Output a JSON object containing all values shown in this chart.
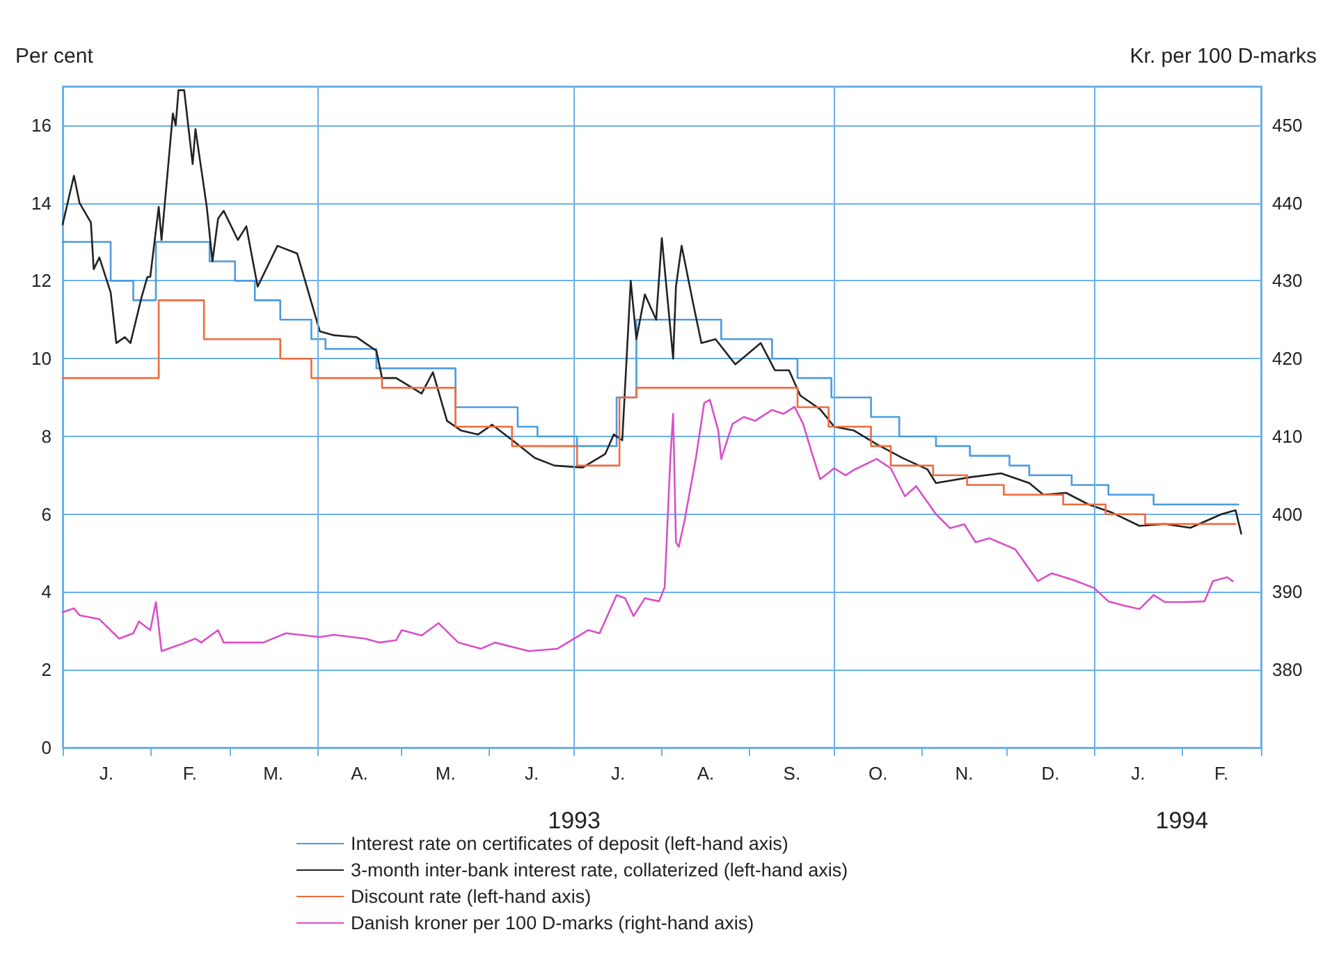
{
  "chart_data": {
    "type": "line",
    "ylabel": "Per cent",
    "y2label": "Kr. per 100 D-marks",
    "xlim": [
      "1993-01-01",
      "1994-03-01"
    ],
    "xticks": [
      {
        "value": "1993-01-01",
        "label": null
      },
      {
        "value": "1993-02-01",
        "label": null
      },
      {
        "value": "1993-03-01",
        "label": null
      },
      {
        "value": "1993-04-01",
        "label": null
      },
      {
        "value": "1993-05-01",
        "label": null
      },
      {
        "value": "1993-06-01",
        "label": null
      },
      {
        "value": "1993-07-01",
        "label": "1993"
      },
      {
        "value": "1993-08-01",
        "label": null
      },
      {
        "value": "1993-09-01",
        "label": null
      },
      {
        "value": "1993-10-01",
        "label": null
      },
      {
        "value": "1993-11-01",
        "label": null
      },
      {
        "value": "1993-12-01",
        "label": null
      },
      {
        "value": "1994-01-01",
        "label": null
      },
      {
        "value": "1994-02-01",
        "label": "1994"
      },
      {
        "value": "1994-03-01",
        "label": null
      }
    ],
    "annotations": [
      "J.",
      "F.",
      "M.",
      "A.",
      "M.",
      "J.",
      "J.",
      "A.",
      "S.",
      "O.",
      "N.",
      "D.",
      "J.",
      "F."
    ],
    "ylim": [
      0,
      17
    ],
    "yticks": [
      0,
      2,
      4,
      6,
      8,
      10,
      12,
      14,
      16
    ],
    "y2lim": [
      370,
      455
    ],
    "y2ticks": [
      380,
      390,
      400,
      410,
      420,
      430,
      440,
      450
    ],
    "grid": "y",
    "legend": "bottom",
    "ref_lines": [
      {
        "axis": "x",
        "value": "1993-04-01",
        "color": "#6ab0ea"
      },
      {
        "axis": "x",
        "value": "1993-07-01",
        "color": "#6ab0ea"
      },
      {
        "axis": "x",
        "value": "1993-10-01",
        "color": "#6ab0ea"
      },
      {
        "axis": "x",
        "value": "1994-01-01",
        "color": "#6ab0ea"
      }
    ],
    "series": [
      {
        "name": "Interest rate on certificates of deposit (left-hand axis)",
        "type": "step",
        "color": "#4a9be0",
        "x": [
          "1993-01-01",
          "1993-01-18",
          "1993-01-26",
          "1993-02-03",
          "1993-02-22",
          "1993-03-03",
          "1993-03-10",
          "1993-03-19",
          "1993-03-30",
          "1993-04-04",
          "1993-04-22",
          "1993-05-20",
          "1993-06-11",
          "1993-06-18",
          "1993-07-02",
          "1993-07-16",
          "1993-07-23",
          "1993-08-22",
          "1993-09-09",
          "1993-09-18",
          "1993-09-30",
          "1993-10-14",
          "1993-10-24",
          "1993-11-06",
          "1993-11-18",
          "1993-12-02",
          "1993-12-09",
          "1993-12-24",
          "1994-01-06",
          "1994-01-22",
          "1994-02-21"
        ],
        "values": [
          13,
          12,
          11.5,
          13,
          12.5,
          12,
          11.5,
          11,
          10.5,
          10.25,
          9.75,
          8.75,
          8.25,
          8,
          7.75,
          9,
          11,
          10.5,
          10,
          9.5,
          9,
          8.5,
          8,
          7.75,
          7.5,
          7.25,
          7,
          6.75,
          6.5,
          6.25,
          6.25
        ]
      },
      {
        "name": "3-month inter-bank interest rate, collaterized (left-hand axis)",
        "color": "#222222",
        "x": [
          "1993-01-01",
          "1993-01-05",
          "1993-01-07",
          "1993-01-11",
          "1993-01-12",
          "1993-01-14",
          "1993-01-18",
          "1993-01-20",
          "1993-01-23",
          "1993-01-25",
          "1993-01-29",
          "1993-01-31",
          "1993-02-01",
          "1993-02-04",
          "1993-02-05",
          "1993-02-09",
          "1993-02-10",
          "1993-02-11",
          "1993-02-13",
          "1993-02-16",
          "1993-02-17",
          "1993-02-21",
          "1993-02-23",
          "1993-02-25",
          "1993-02-27",
          "1993-03-04",
          "1993-03-07",
          "1993-03-11",
          "1993-03-18",
          "1993-03-25",
          "1993-04-02",
          "1993-04-07",
          "1993-04-15",
          "1993-04-22",
          "1993-04-24",
          "1993-04-29",
          "1993-05-08",
          "1993-05-12",
          "1993-05-17",
          "1993-05-22",
          "1993-05-28",
          "1993-06-02",
          "1993-06-10",
          "1993-06-17",
          "1993-06-24",
          "1993-07-04",
          "1993-07-12",
          "1993-07-15",
          "1993-07-18",
          "1993-07-21",
          "1993-07-23",
          "1993-07-26",
          "1993-07-30",
          "1993-08-01",
          "1993-08-05",
          "1993-08-06",
          "1993-08-08",
          "1993-08-12",
          "1993-08-15",
          "1993-08-20",
          "1993-08-27",
          "1993-09-05",
          "1993-09-10",
          "1993-09-15",
          "1993-09-19",
          "1993-09-26",
          "1993-10-01",
          "1993-10-08",
          "1993-10-16",
          "1993-10-25",
          "1993-11-03",
          "1993-11-06",
          "1993-11-18",
          "1993-11-29",
          "1993-12-09",
          "1993-12-14",
          "1993-12-22",
          "1993-12-30",
          "1994-01-07",
          "1994-01-17",
          "1994-01-26",
          "1994-02-04",
          "1994-02-15",
          "1994-02-20",
          "1994-02-22"
        ],
        "values": [
          13.45,
          14.7,
          14.0,
          13.5,
          12.3,
          12.6,
          11.7,
          10.4,
          10.55,
          10.4,
          11.6,
          12.1,
          12.1,
          13.9,
          13.05,
          16.3,
          16.0,
          16.9,
          16.9,
          15.0,
          15.9,
          13.9,
          12.5,
          13.6,
          13.8,
          13.05,
          13.4,
          11.85,
          12.9,
          12.7,
          10.7,
          10.6,
          10.55,
          10.2,
          9.5,
          9.5,
          9.1,
          9.65,
          8.4,
          8.15,
          8.05,
          8.3,
          7.85,
          7.45,
          7.25,
          7.2,
          7.55,
          8.05,
          7.9,
          12.0,
          10.5,
          11.65,
          11.0,
          13.1,
          10.0,
          11.85,
          12.9,
          11.45,
          10.4,
          10.5,
          9.85,
          10.4,
          9.7,
          9.7,
          9.05,
          8.7,
          8.25,
          8.15,
          7.8,
          7.45,
          7.15,
          6.8,
          6.95,
          7.05,
          6.8,
          6.5,
          6.55,
          6.25,
          6.05,
          5.7,
          5.75,
          5.65,
          6.0,
          6.1,
          5.5
        ]
      },
      {
        "name": "Discount rate (left-hand axis)",
        "type": "step",
        "color": "#f06a3a",
        "x": [
          "1993-01-01",
          "1993-02-04",
          "1993-02-20",
          "1993-03-19",
          "1993-03-30",
          "1993-04-24",
          "1993-05-20",
          "1993-06-09",
          "1993-07-02",
          "1993-07-17",
          "1993-07-23",
          "1993-09-18",
          "1993-09-29",
          "1993-10-14",
          "1993-10-21",
          "1993-11-05",
          "1993-11-17",
          "1993-11-30",
          "1993-12-21",
          "1994-01-05",
          "1994-01-19",
          "1994-02-20"
        ],
        "values": [
          9.5,
          11.5,
          10.5,
          10,
          9.5,
          9.25,
          8.25,
          7.75,
          7.25,
          9,
          9.25,
          8.75,
          8.25,
          7.75,
          7.25,
          7,
          6.75,
          6.5,
          6.25,
          6,
          5.75,
          5.75
        ]
      },
      {
        "name": "Danish kroner per 100 D-marks (right-hand axis)",
        "axis": "y2",
        "color": "#d94fc8",
        "x": [
          "1993-01-01",
          "1993-01-05",
          "1993-01-07",
          "1993-01-14",
          "1993-01-21",
          "1993-01-26",
          "1993-01-28",
          "1993-02-01",
          "1993-02-03",
          "1993-02-05",
          "1993-02-12",
          "1993-02-17",
          "1993-02-19",
          "1993-02-25",
          "1993-02-27",
          "1993-03-13",
          "1993-03-21",
          "1993-04-02",
          "1993-04-07",
          "1993-04-18",
          "1993-04-23",
          "1993-04-29",
          "1993-05-01",
          "1993-05-08",
          "1993-05-14",
          "1993-05-21",
          "1993-05-29",
          "1993-06-03",
          "1993-06-15",
          "1993-06-25",
          "1993-06-30",
          "1993-07-06",
          "1993-07-10",
          "1993-07-16",
          "1993-07-19",
          "1993-07-22",
          "1993-07-26",
          "1993-07-31",
          "1993-08-02",
          "1993-08-04",
          "1993-08-05",
          "1993-08-06",
          "1993-08-07",
          "1993-08-09",
          "1993-08-13",
          "1993-08-16",
          "1993-08-18",
          "1993-08-21",
          "1993-08-22",
          "1993-08-26",
          "1993-08-30",
          "1993-09-03",
          "1993-09-09",
          "1993-09-13",
          "1993-09-17",
          "1993-09-20",
          "1993-09-23",
          "1993-09-26",
          "1993-10-01",
          "1993-10-05",
          "1993-10-08",
          "1993-10-16",
          "1993-10-21",
          "1993-10-26",
          "1993-10-30",
          "1993-11-06",
          "1993-11-11",
          "1993-11-16",
          "1993-11-20",
          "1993-11-25",
          "1993-12-04",
          "1993-12-12",
          "1993-12-17",
          "1993-12-25",
          "1994-01-01",
          "1994-01-06",
          "1994-01-11",
          "1994-01-17",
          "1994-01-22",
          "1994-01-26",
          "1994-02-02",
          "1994-02-09",
          "1994-02-12",
          "1994-02-17",
          "1994-02-19"
        ],
        "values": [
          387.4,
          387.9,
          387.0,
          386.5,
          384.0,
          384.7,
          386.2,
          385.1,
          388.7,
          382.4,
          383.3,
          384.0,
          383.5,
          385.1,
          383.5,
          383.5,
          384.7,
          384.2,
          384.5,
          384.0,
          383.5,
          383.8,
          385.1,
          384.4,
          386.0,
          383.5,
          382.7,
          383.5,
          382.4,
          382.7,
          383.8,
          385.1,
          384.7,
          389.6,
          389.2,
          386.9,
          389.2,
          388.8,
          390.6,
          407.1,
          412.9,
          396.4,
          395.8,
          399.1,
          407.1,
          414.3,
          414.7,
          410.7,
          407.1,
          411.6,
          412.5,
          412.0,
          413.4,
          412.9,
          413.8,
          411.6,
          408.0,
          404.5,
          405.9,
          405.0,
          405.7,
          407.1,
          405.9,
          402.3,
          403.6,
          400.0,
          398.2,
          398.7,
          396.4,
          396.9,
          395.5,
          391.4,
          392.4,
          391.5,
          390.5,
          388.8,
          388.3,
          387.8,
          389.6,
          388.7,
          388.7,
          388.8,
          391.4,
          391.9,
          391.4
        ]
      }
    ]
  }
}
